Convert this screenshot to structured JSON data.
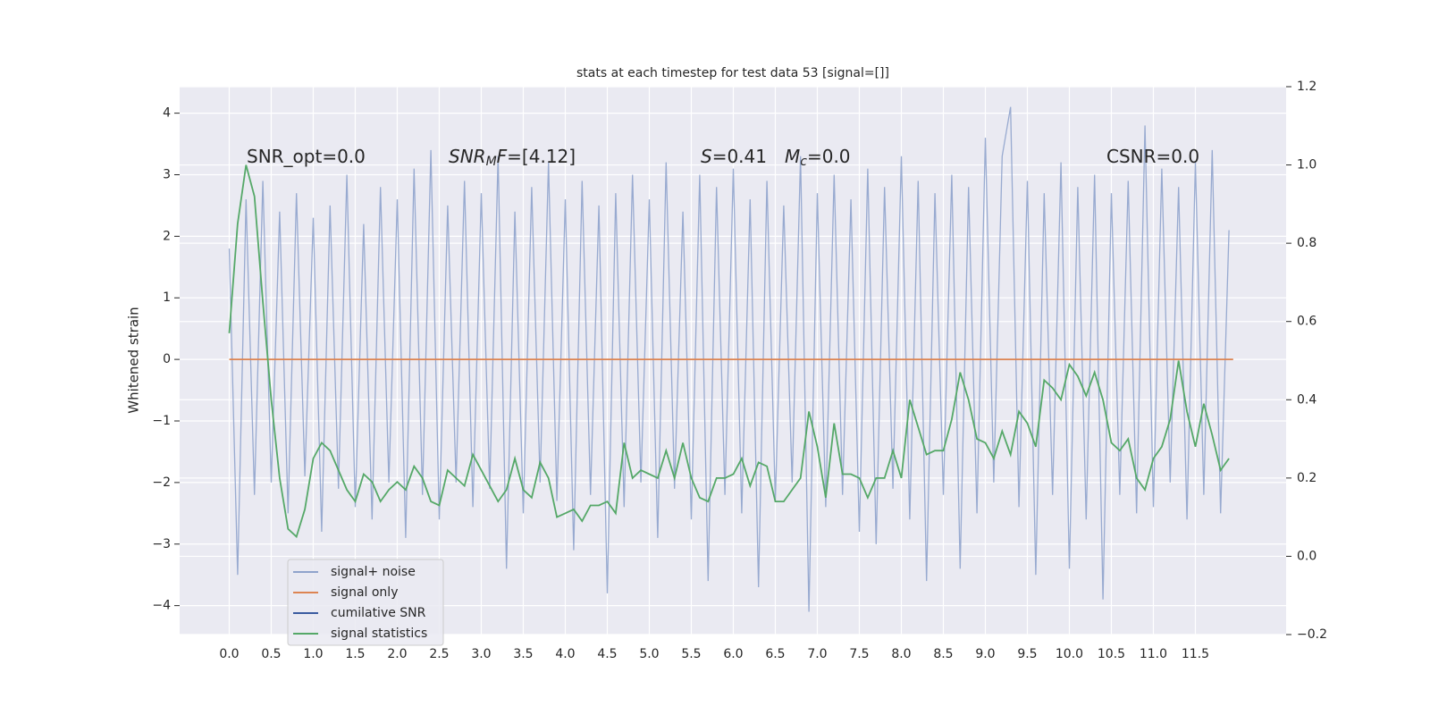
{
  "chart_data": {
    "type": "line",
    "title": "stats at each timestep for test data 53 [signal=[]]",
    "ylabel": "Whitened strain",
    "xlim": [
      -0.59,
      12.58
    ],
    "ylim": [
      -4.47,
      4.43
    ],
    "y2lim": [
      -0.2,
      1.2
    ],
    "xticks": [
      {
        "value": 0,
        "label": "0.0"
      },
      0.5,
      {
        "value": 1,
        "label": "1.0"
      },
      1.5,
      {
        "value": 2,
        "label": "2.0"
      },
      2.5,
      {
        "value": 3,
        "label": "3.0"
      },
      3.5,
      {
        "value": 4,
        "label": "4.0"
      },
      4.5,
      {
        "value": 5,
        "label": "5.0"
      },
      5.5,
      {
        "value": 6,
        "label": "6.0"
      },
      6.5,
      {
        "value": 7,
        "label": "7.0"
      },
      7.5,
      {
        "value": 8,
        "label": "8.0"
      },
      8.5,
      {
        "value": 9,
        "label": "9.0"
      },
      9.5,
      {
        "value": 10,
        "label": "10.0"
      },
      10.5,
      {
        "value": 11,
        "label": "11.0"
      },
      11.5
    ],
    "yticks": [
      -4,
      -3,
      -2,
      -1,
      0,
      1,
      2,
      3,
      4
    ],
    "y2ticks": [
      -0.2,
      {
        "value": 0,
        "label": "0.0"
      },
      0.2,
      0.4,
      0.6,
      0.8,
      {
        "value": 1,
        "label": "1.0"
      },
      1.2
    ],
    "grid": true,
    "legend": "lower left",
    "x": [
      0,
      0.1,
      0.2,
      0.3,
      0.4,
      0.5,
      0.6,
      0.7,
      0.8,
      0.9,
      1,
      1.1,
      1.2,
      1.3,
      1.4,
      1.5,
      1.6,
      1.7,
      1.8,
      1.9,
      2,
      2.1,
      2.2,
      2.3,
      2.4,
      2.5,
      2.6,
      2.7,
      2.8,
      2.9,
      3,
      3.1,
      3.2,
      3.3,
      3.4,
      3.5,
      3.6,
      3.7,
      3.8,
      3.9,
      4,
      4.1,
      4.2,
      4.3,
      4.4,
      4.5,
      4.6,
      4.7,
      4.8,
      4.9,
      5,
      5.1,
      5.2,
      5.3,
      5.4,
      5.5,
      5.6,
      5.7,
      5.8,
      5.9,
      6,
      6.1,
      6.2,
      6.3,
      6.4,
      6.5,
      6.6,
      6.7,
      6.8,
      6.9,
      7,
      7.1,
      7.2,
      7.3,
      7.4,
      7.5,
      7.6,
      7.7,
      7.8,
      7.9,
      8,
      8.1,
      8.2,
      8.3,
      8.4,
      8.5,
      8.6,
      8.7,
      8.8,
      8.9,
      9,
      9.1,
      9.2,
      9.3,
      9.4,
      9.5,
      9.6,
      9.7,
      9.8,
      9.9,
      10,
      10.1,
      10.2,
      10.3,
      10.4,
      10.5,
      10.6,
      10.7,
      10.8,
      10.9,
      11,
      11.1,
      11.2,
      11.3,
      11.4,
      11.5,
      11.6,
      11.7,
      11.8,
      11.9
    ],
    "series": [
      {
        "name": "signal+ noise",
        "color": "#8fa3cc",
        "axis": "y",
        "values": [
          1.8,
          -3.5,
          2.6,
          -2.2,
          2.9,
          -2.0,
          2.4,
          -2.5,
          2.7,
          -1.9,
          2.3,
          -2.8,
          2.5,
          -2.1,
          3.0,
          -2.4,
          2.2,
          -2.6,
          2.8,
          -2.0,
          2.6,
          -2.9,
          3.1,
          -2.2,
          3.4,
          -2.6,
          2.5,
          -2.0,
          2.9,
          -2.4,
          2.7,
          -2.1,
          3.3,
          -3.4,
          2.4,
          -2.5,
          2.8,
          -2.0,
          3.2,
          -2.3,
          2.6,
          -3.1,
          2.9,
          -2.2,
          2.5,
          -3.8,
          2.7,
          -2.4,
          3.0,
          -2.0,
          2.6,
          -2.9,
          3.2,
          -2.1,
          2.4,
          -2.6,
          3.0,
          -3.6,
          2.8,
          -2.2,
          3.1,
          -2.5,
          2.6,
          -3.7,
          2.9,
          -2.3,
          2.5,
          -2.0,
          3.3,
          -4.1,
          2.7,
          -2.4,
          3.0,
          -2.2,
          2.6,
          -2.8,
          3.1,
          -3.0,
          2.8,
          -2.1,
          3.3,
          -2.6,
          2.9,
          -3.6,
          2.7,
          -2.2,
          3.0,
          -3.4,
          2.8,
          -2.5,
          3.6,
          -2.0,
          3.3,
          4.1,
          -2.4,
          2.9,
          -3.5,
          2.7,
          -2.2,
          3.2,
          -3.4,
          2.8,
          -2.6,
          3.0,
          -3.9,
          2.7,
          -2.2,
          2.9,
          -2.5,
          3.8,
          -2.4,
          3.1,
          -2.0,
          2.8,
          -2.6,
          3.2,
          -2.2,
          3.4,
          -2.5,
          2.1
        ]
      },
      {
        "name": "signal only",
        "color": "#dd8452",
        "axis": "y",
        "x": [
          0,
          11.95
        ],
        "values": [
          0,
          0
        ]
      },
      {
        "name": "cumilative SNR",
        "color": "#3a5ba0",
        "axis": "y",
        "x": [],
        "values": []
      },
      {
        "name": "signal statistics",
        "color": "#55a868",
        "axis": "y2",
        "values": [
          0.57,
          0.85,
          1.0,
          0.92,
          0.65,
          0.4,
          0.2,
          0.07,
          0.05,
          0.12,
          0.25,
          0.29,
          0.27,
          0.22,
          0.17,
          0.14,
          0.21,
          0.19,
          0.14,
          0.17,
          0.19,
          0.17,
          0.23,
          0.2,
          0.14,
          0.13,
          0.22,
          0.2,
          0.18,
          0.26,
          0.22,
          0.18,
          0.14,
          0.17,
          0.25,
          0.17,
          0.15,
          0.24,
          0.2,
          0.1,
          0.11,
          0.12,
          0.09,
          0.13,
          0.13,
          0.14,
          0.11,
          0.29,
          0.2,
          0.22,
          0.21,
          0.2,
          0.27,
          0.2,
          0.29,
          0.2,
          0.15,
          0.14,
          0.2,
          0.2,
          0.21,
          0.25,
          0.18,
          0.24,
          0.23,
          0.14,
          0.14,
          0.17,
          0.2,
          0.37,
          0.28,
          0.15,
          0.34,
          0.21,
          0.21,
          0.2,
          0.15,
          0.2,
          0.2,
          0.27,
          0.2,
          0.4,
          0.33,
          0.26,
          0.27,
          0.27,
          0.35,
          0.47,
          0.4,
          0.3,
          0.29,
          0.25,
          0.32,
          0.26,
          0.37,
          0.34,
          0.28,
          0.45,
          0.43,
          0.4,
          0.49,
          0.46,
          0.41,
          0.47,
          0.4,
          0.29,
          0.27,
          0.3,
          0.2,
          0.17,
          0.25,
          0.28,
          0.35,
          0.5,
          0.37,
          0.28,
          0.39,
          0.31,
          0.22,
          0.25
        ]
      }
    ],
    "annotations": [
      [
        {
          "text": "SNR_opt=0.0",
          "style": "normal"
        }
      ],
      [
        {
          "text": "SNR",
          "style": "italic"
        },
        {
          "text": "M",
          "style": "sub"
        },
        {
          "text": "F",
          "style": "italic"
        },
        {
          "text": "=[4.12]",
          "style": "normal"
        }
      ],
      [
        {
          "text": "S",
          "style": "italic"
        },
        {
          "text": "=0.41",
          "style": "normal"
        }
      ],
      [
        {
          "text": "M",
          "style": "italic"
        },
        {
          "text": "c",
          "style": "sub"
        },
        {
          "text": "=0.0",
          "style": "normal"
        }
      ],
      [
        {
          "text": "CSNR=0.0",
          "style": "normal"
        }
      ]
    ]
  }
}
